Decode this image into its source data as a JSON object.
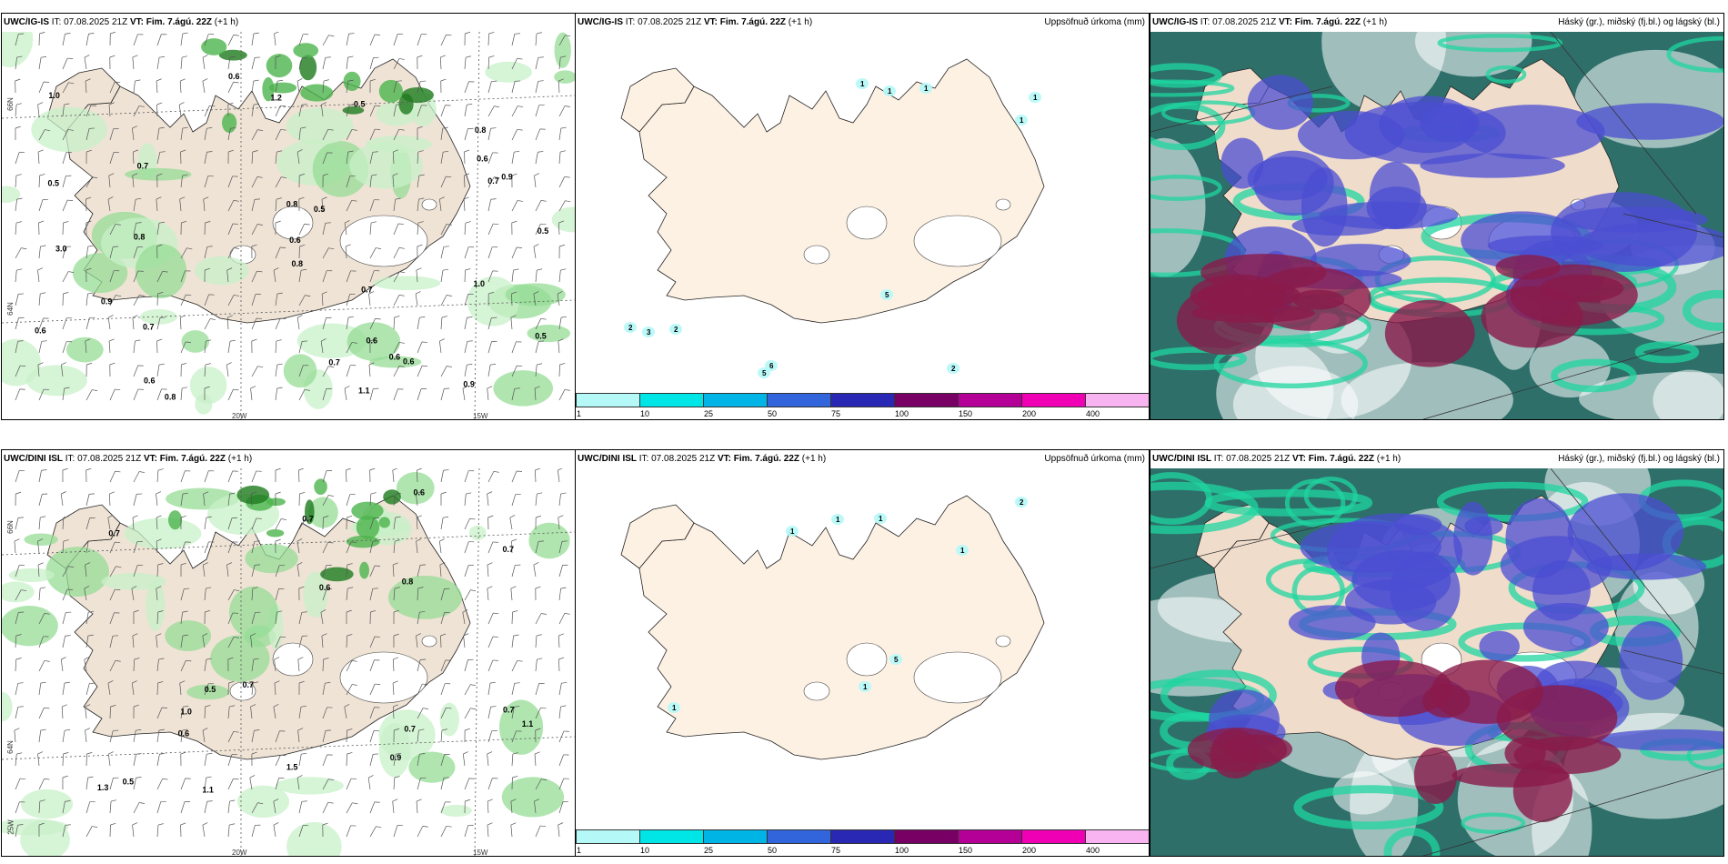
{
  "rows": [
    {
      "model": "UWC/IG-IS",
      "it": "IT: 07.08.2025 21Z",
      "vt_label": "VT:",
      "vt": "Fim. 7.ágú. 22Z",
      "lead": "(+1 h)"
    },
    {
      "model": "UWC/DINI ISL",
      "it": "IT: 07.08.2025 21Z",
      "vt_label": "VT:",
      "vt": "Fim. 7.ágú. 22Z",
      "lead": "(+1 h)"
    }
  ],
  "precip_title": "Uppsöfnuð úrkoma (mm)",
  "cloud_title": "Háský (gr.), miðský (fj.bl.) og lágský (bl.)",
  "colorbar": {
    "ticks": [
      "1",
      "10",
      "25",
      "50",
      "75",
      "100",
      "150",
      "200",
      "400"
    ],
    "colors": [
      "#b4f8f8",
      "#00e6e6",
      "#00b4e6",
      "#3264dc",
      "#2828b4",
      "#780064",
      "#b40096",
      "#f000b4",
      "#f8b4f0"
    ]
  },
  "axis_labels": {
    "lat66": "66N",
    "lat64": "64N",
    "lon20": "20W",
    "lon15": "15W",
    "lon25": "25W"
  },
  "precip_top_labels": [
    "1",
    "1",
    "1",
    "1",
    "1",
    "2",
    "3",
    "2",
    "5",
    "6",
    "5",
    "2"
  ],
  "precip_bot_labels": [
    "1",
    "1",
    "1",
    "1",
    "2",
    "5",
    "1",
    "1"
  ],
  "wind_top_values": [
    "0.5",
    "1.0",
    "0.8",
    "0.8",
    "0.9",
    "0.8",
    "0.9",
    "1.2",
    "0.5",
    "0.7",
    "0.6",
    "0.8",
    "0.5",
    "1.0",
    "0.9",
    "0.7",
    "0.6",
    "0.6",
    "0.6",
    "0.7",
    "3.0",
    "1.1",
    "0.6",
    "0.5",
    "0.6",
    "0.6",
    "0.5",
    "0.7",
    "0.6",
    "0.8",
    "0.7"
  ],
  "wind_bot_values": [
    "0.8",
    "0.7",
    "1.1",
    "0.7",
    "0.6",
    "0.5",
    "1.1",
    "0.6",
    "0.7",
    "1.0",
    "0.9",
    "0.7",
    "1.3",
    "1.5",
    "0.7",
    "0.5",
    "0.6",
    "0.7"
  ]
}
